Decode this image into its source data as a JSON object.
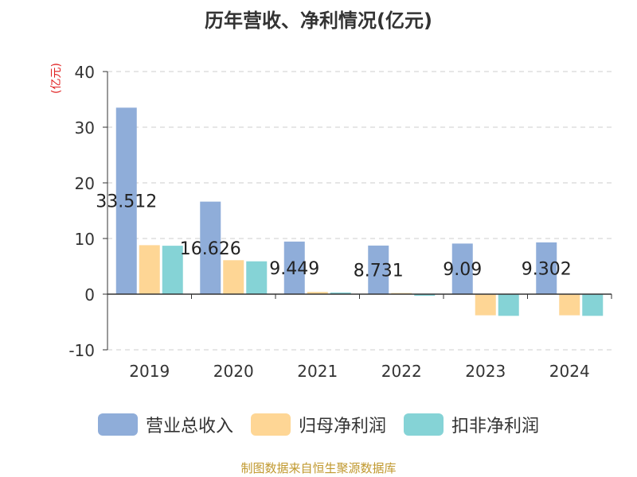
{
  "title": "历年营收、净利情况(亿元)",
  "y_unit": "(亿元)",
  "source": "制图数据来自恒生聚源数据库",
  "colors": {
    "revenue": "#8fadd9",
    "net_profit": "#fed695",
    "non_gaap": "#85d3d6",
    "unit_text": "#e02020",
    "source_text": "#c0982e",
    "grid": "#cccccc",
    "axis": "#333333"
  },
  "chart_data": {
    "type": "bar",
    "title": "历年营收、净利情况(亿元)",
    "ylabel": "(亿元)",
    "categories": [
      "2019",
      "2020",
      "2021",
      "2022",
      "2023",
      "2024"
    ],
    "ylim": [
      -10,
      40
    ],
    "yticks": [
      -10,
      0,
      10,
      20,
      30,
      40
    ],
    "grid": true,
    "legend_position": "bottom",
    "series": [
      {
        "name": "营业总收入",
        "values": [
          33.512,
          16.626,
          9.449,
          8.731,
          9.09,
          9.302
        ]
      },
      {
        "name": "归母净利润",
        "values": [
          8.8,
          6.1,
          0.4,
          0.2,
          -3.8,
          -3.8
        ]
      },
      {
        "name": "扣非净利润",
        "values": [
          8.7,
          5.9,
          0.3,
          -0.3,
          -3.9,
          -3.9
        ]
      }
    ],
    "data_labels": [
      "33.512",
      "16.626",
      "9.449",
      "8.731",
      "9.09",
      "9.302"
    ]
  }
}
